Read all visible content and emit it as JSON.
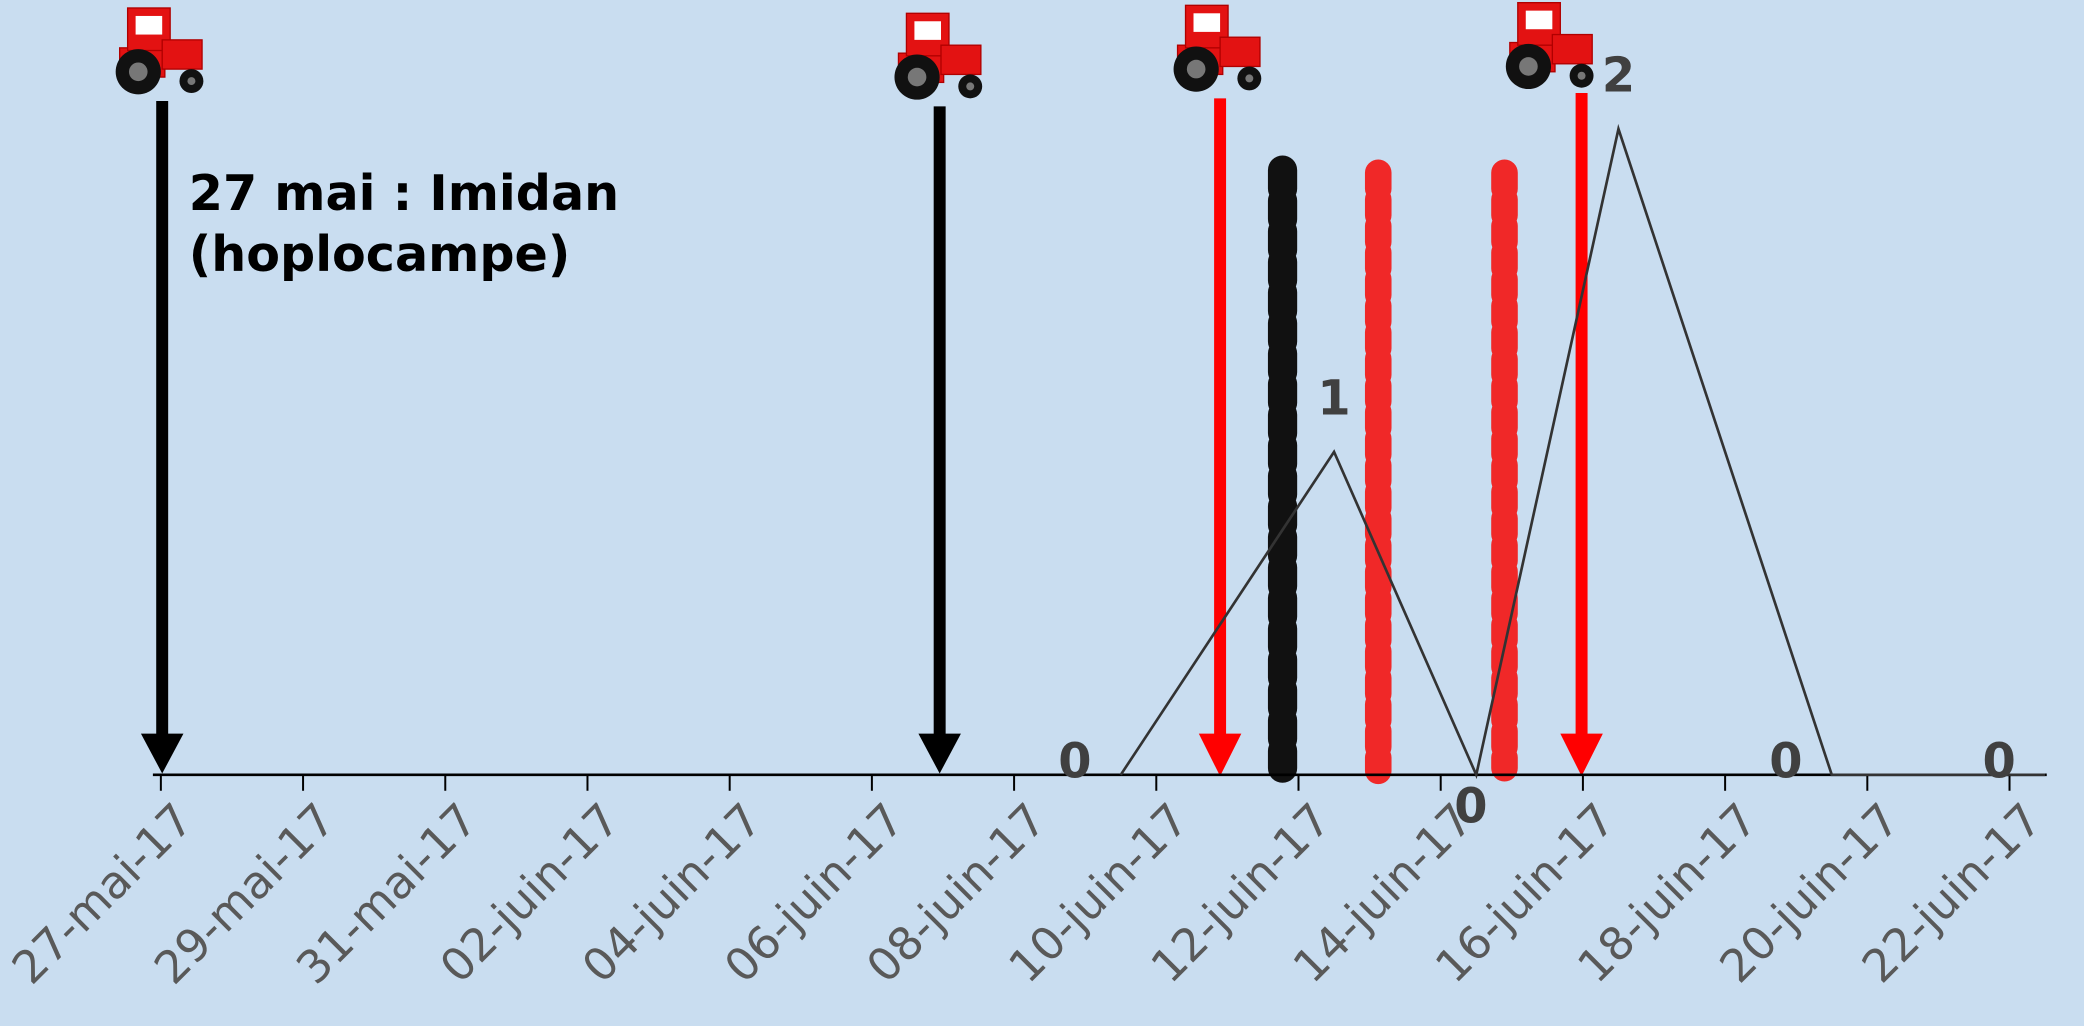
{
  "chart_data": {
    "type": "line",
    "x": [
      "09-juin-17",
      "12-juin-17",
      "14-juin-17",
      "16-juin-17",
      "19-juin-17",
      "22-juin-17"
    ],
    "values": [
      0,
      1,
      0,
      2,
      0,
      0
    ],
    "color": "#333333",
    "ylim": [
      0,
      2
    ],
    "xticks": [
      "27-mai-17",
      "29-mai-17",
      "31-mai-17",
      "02-juin-17",
      "04-juin-17",
      "06-juin-17",
      "08-juin-17",
      "10-juin-17",
      "12-juin-17",
      "14-juin-17",
      "16-juin-17",
      "18-juin-17",
      "20-juin-17",
      "22-juin-17"
    ],
    "annotations": [
      "27 mai : Imidan",
      "(hoplocampe)"
    ]
  }
}
